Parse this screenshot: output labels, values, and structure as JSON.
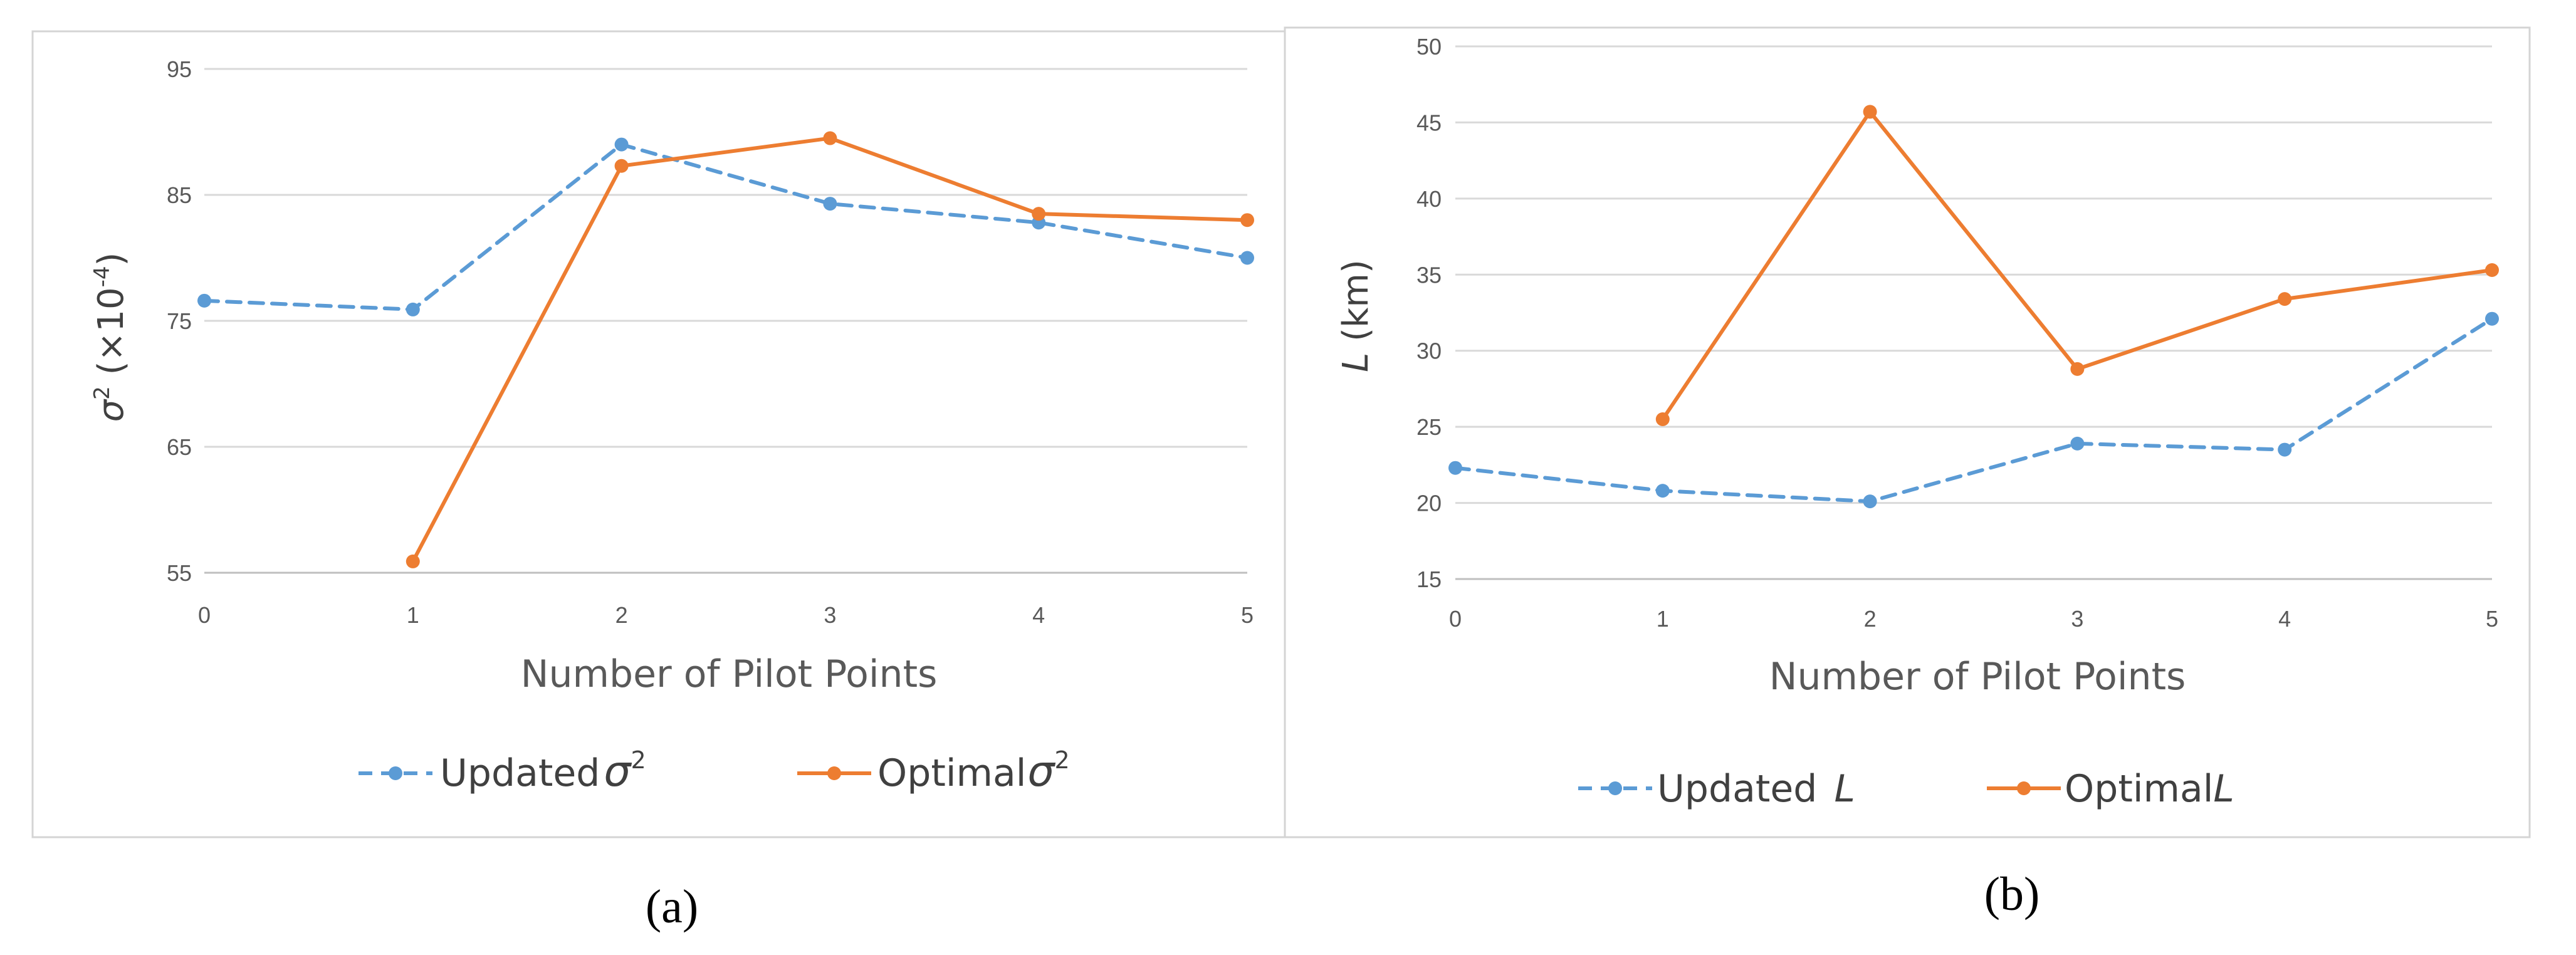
{
  "chart_data": [
    {
      "type": "line",
      "panel_label": "(a)",
      "x": [
        0,
        1,
        2,
        3,
        4,
        5
      ],
      "xlabel": "Number of Pilot Points",
      "ylabel_symbol": "σ",
      "ylabel_sup": "2",
      "ylabel_rest": " (×10",
      "ylabel_exp": "-4",
      "ylabel_close": ")",
      "ylim": [
        55,
        95
      ],
      "yticks": [
        55,
        65,
        75,
        85,
        95
      ],
      "grid": "horizontal",
      "legend_position": "bottom",
      "series": [
        {
          "name": "Updated σ2",
          "legend_text": "Updated",
          "legend_symbol": "σ",
          "legend_sup": "2",
          "style": "dashed",
          "color": "#5b9bd5",
          "values": [
            76.6,
            75.9,
            89.0,
            84.3,
            82.8,
            80.0
          ]
        },
        {
          "name": "Optimal σ2",
          "legend_text": "Optimal",
          "legend_symbol": "σ",
          "legend_sup": "2",
          "style": "solid",
          "color": "#ed7d31",
          "values": [
            null,
            55.9,
            87.3,
            89.5,
            83.5,
            83.0
          ]
        }
      ]
    },
    {
      "type": "line",
      "panel_label": "(b)",
      "x": [
        0,
        1,
        2,
        3,
        4,
        5
      ],
      "xlabel": "Number of Pilot Points",
      "ylabel_symbol": "L",
      "ylabel_rest": " (km)",
      "ylim": [
        15,
        50
      ],
      "yticks": [
        15,
        20,
        25,
        30,
        35,
        40,
        45,
        50
      ],
      "grid": "horizontal",
      "legend_position": "bottom",
      "series": [
        {
          "name": "Updated L",
          "legend_text": "Updated ",
          "legend_symbol": "L",
          "style": "dashed",
          "color": "#5b9bd5",
          "values": [
            22.3,
            20.8,
            20.1,
            23.9,
            23.5,
            32.1
          ]
        },
        {
          "name": "Optimal L",
          "legend_text": "Optimal",
          "legend_symbol": "L",
          "style": "solid",
          "color": "#ed7d31",
          "values": [
            null,
            25.5,
            45.7,
            28.8,
            33.4,
            35.3
          ]
        }
      ]
    }
  ]
}
